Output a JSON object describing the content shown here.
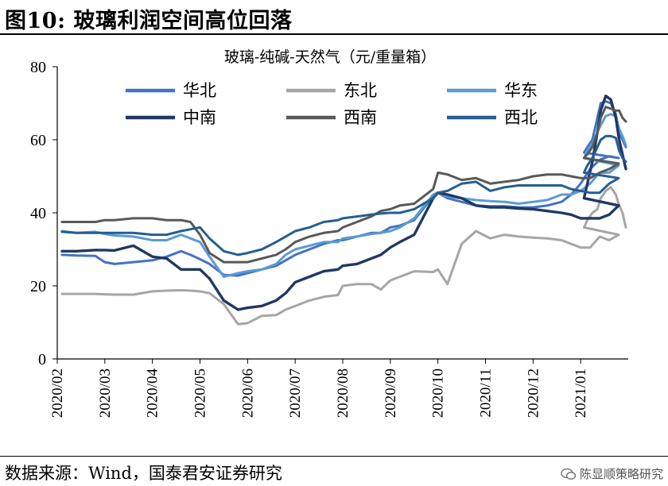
{
  "figure": {
    "title": "图10: 玻璃利润空间高位回落",
    "source": "数据来源：Wind，国泰君安证券研究",
    "watermark": "陈显顺策略研究"
  },
  "chart_data": {
    "type": "line",
    "title": "玻璃-纯碱-天然气（元/重量箱）",
    "xlabel": "",
    "ylabel": "",
    "ylim": [
      0,
      80
    ],
    "yticks": [
      0,
      20,
      40,
      60,
      80
    ],
    "xlim": [
      "2020-02",
      "2021-02"
    ],
    "xticks": [
      "2020/02",
      "2020/03",
      "2020/04",
      "2020/05",
      "2020/06",
      "2020/07",
      "2020/08",
      "2020/09",
      "2020/10",
      "2020/11",
      "2020/12",
      "2021/01"
    ],
    "grid": false,
    "legend_position": "top",
    "colors": {
      "华北": "#4472c4",
      "东北": "#a6a6a6",
      "华东": "#5b9bd5",
      "中南": "#203864",
      "西南": "#595959",
      "西北": "#255e91"
    },
    "x": [
      0.1,
      0.4,
      0.8,
      1.0,
      1.2,
      1.6,
      2.0,
      2.3,
      2.6,
      2.8,
      3.0,
      3.2,
      3.5,
      3.8,
      4.0,
      4.3,
      4.6,
      4.8,
      5.0,
      5.3,
      5.6,
      5.9,
      6.0,
      6.3,
      6.6,
      6.8,
      7.0,
      7.2,
      7.5,
      7.9,
      8.0,
      8.2,
      8.5,
      8.8,
      9.1,
      9.4,
      9.7,
      10.0,
      10.3,
      10.6,
      10.8,
      11.0,
      11.2,
      11.4,
      11.6,
      11.8
    ],
    "series": [
      {
        "name": "华北",
        "values": [
          28.5,
          28.3,
          28.2,
          26.5,
          26,
          26.5,
          27,
          28,
          29.5,
          28.5,
          27.3,
          26,
          23,
          22.8,
          23.5,
          24.5,
          25.5,
          27,
          28.5,
          30,
          31.5,
          32.5,
          32.5,
          33.5,
          34.5,
          34.5,
          36,
          36.5,
          38,
          44.5,
          45.5,
          44,
          43,
          42,
          41.8,
          41.8,
          41.5,
          41.5,
          42,
          43,
          45,
          48,
          52,
          54.5,
          55.5,
          55
        ]
      },
      {
        "name": "东北",
        "values": [
          17.8,
          17.8,
          17.8,
          17.7,
          17.6,
          17.6,
          18.5,
          18.7,
          18.8,
          18.7,
          18.5,
          18,
          15,
          9.5,
          9.8,
          11.8,
          12,
          13.5,
          14.5,
          16,
          17,
          17.5,
          20,
          20.5,
          20.5,
          19,
          21.5,
          22.5,
          24,
          23.8,
          24.5,
          20.5,
          31.5,
          35,
          33,
          34,
          33.5,
          33.2,
          33,
          32.5,
          31.5,
          30.5,
          30.5,
          33.5,
          32.5,
          34
        ]
      },
      {
        "name": "华东",
        "values": [
          35,
          34.5,
          34.8,
          34.2,
          33.8,
          33.5,
          32.5,
          32.5,
          34,
          33,
          32,
          28,
          22.5,
          23.5,
          24,
          24.5,
          26,
          28.5,
          30,
          31,
          32,
          32,
          33,
          33.5,
          34.2,
          34.5,
          35,
          36,
          38.5,
          45,
          45.5,
          44.5,
          44,
          43.5,
          43.2,
          43,
          42.5,
          43,
          43.5,
          45,
          45,
          46,
          48,
          51,
          51,
          53
        ]
      },
      {
        "name": "中南",
        "values": [
          29.5,
          29.5,
          29.8,
          29.8,
          29.7,
          31,
          28,
          27.5,
          24.5,
          24.5,
          24.5,
          22,
          16,
          13.5,
          14,
          14.5,
          16,
          18,
          21,
          22.5,
          24,
          24.5,
          25.5,
          26,
          27.5,
          28.5,
          30.5,
          32,
          34,
          44,
          45.5,
          45,
          44,
          42,
          41.5,
          41.5,
          41.2,
          41,
          40.5,
          40,
          39.5,
          38.5,
          38.5,
          38.5,
          39.5,
          42
        ]
      },
      {
        "name": "西南",
        "values": [
          37.5,
          37.5,
          37.5,
          38,
          38,
          38.5,
          38.5,
          38,
          38,
          37.5,
          34,
          29,
          26.5,
          26.5,
          26.5,
          27.5,
          28.5,
          30,
          32,
          33.5,
          34.5,
          35,
          36,
          37.5,
          39,
          40.5,
          41,
          42,
          42.5,
          46.5,
          51,
          50.5,
          49,
          49.5,
          48,
          48.5,
          49,
          50,
          50.5,
          50.5,
          50,
          49.5,
          49.5,
          51,
          52,
          53.5
        ]
      },
      {
        "name": "西北",
        "values": [
          34.8,
          34.5,
          34.5,
          34.5,
          34.5,
          34.5,
          34,
          34,
          35,
          35.5,
          36,
          33,
          29.5,
          28.5,
          29,
          30,
          32,
          33.5,
          35,
          36,
          37.5,
          38,
          38.5,
          39,
          39.5,
          39.8,
          40,
          40,
          41,
          44,
          45.5,
          46,
          48,
          48.5,
          46,
          47,
          47.5,
          47.5,
          47.5,
          47.5,
          46.5,
          46,
          45.5,
          45.5,
          48,
          49.5
        ]
      }
    ],
    "tail": {
      "x": [
        11.8,
        12.0,
        12.2,
        12.5,
        12.8,
        13.0,
        13.3,
        13.6,
        13.9,
        14.1,
        14.3,
        14.5
      ],
      "series": [
        {
          "name": "华北",
          "values": [
            55,
            56.5,
            58,
            60,
            66,
            70,
            70.5,
            70,
            67,
            62,
            60,
            58
          ]
        },
        {
          "name": "东北",
          "values": [
            34,
            36,
            38,
            40,
            41,
            44,
            46,
            47,
            45,
            42,
            40,
            36
          ]
        },
        {
          "name": "华东",
          "values": [
            53,
            55,
            57,
            59,
            62,
            64,
            66.5,
            67,
            66.5,
            63,
            61,
            58.5
          ]
        },
        {
          "name": "中南",
          "values": [
            42,
            44,
            48,
            54,
            62,
            68,
            72,
            71,
            66,
            60,
            56,
            52
          ]
        },
        {
          "name": "西南",
          "values": [
            53.5,
            55,
            56,
            58,
            62,
            66,
            69,
            68.5,
            68,
            68,
            66,
            65
          ]
        },
        {
          "name": "西北",
          "values": [
            49.5,
            51,
            53,
            55,
            58,
            60,
            61,
            61,
            60.5,
            57,
            55,
            54
          ]
        }
      ]
    }
  }
}
